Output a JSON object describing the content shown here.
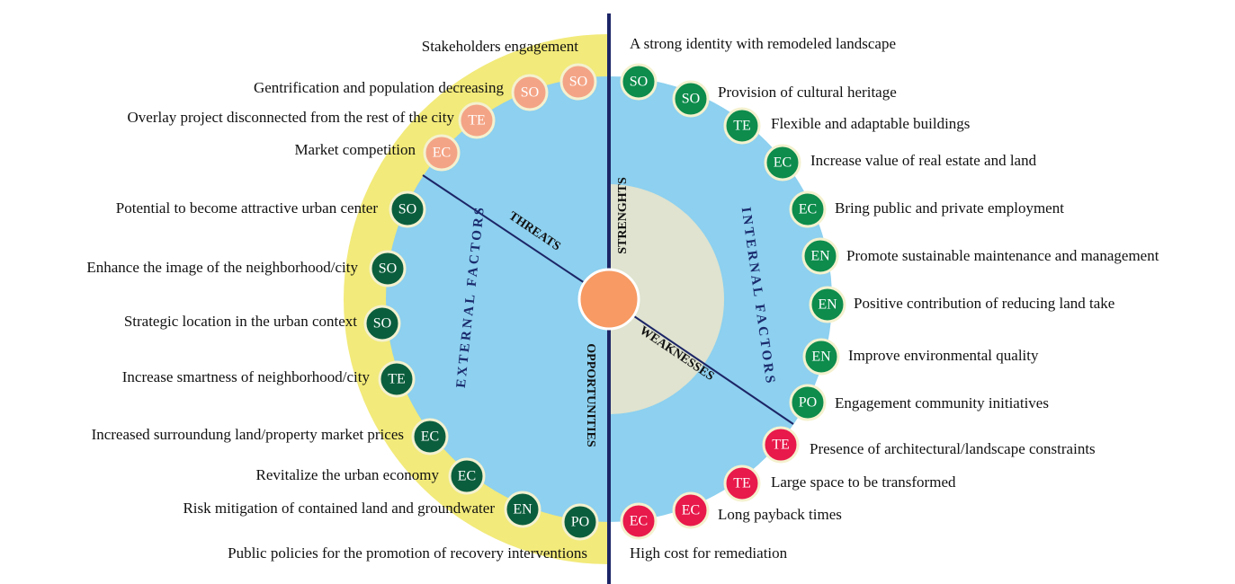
{
  "labels": {
    "external": "EXTERNAL FACTORS",
    "internal": "INTERNAL FACTORS",
    "threats": "THREATS",
    "weaknesses": "WEAKNESSES",
    "strengths": "STRENGHTS",
    "opportunities": "OPPORTUNITIES"
  },
  "external": [
    {
      "code": "SO",
      "label": "Stakeholders engagement",
      "color": "#f4a486"
    },
    {
      "code": "SO",
      "label": "Gentrification and population decreasing",
      "color": "#f4a486"
    },
    {
      "code": "TE",
      "label": "Overlay project disconnected from the rest of the city",
      "color": "#f4a486"
    },
    {
      "code": "EC",
      "label": "Market competition",
      "color": "#f4a486"
    },
    {
      "code": "SO",
      "label": "Potential to become attractive urban center",
      "color": "#0b5e3d"
    },
    {
      "code": "SO",
      "label": "Enhance the image of the neighborhood/city",
      "color": "#0b5e3d"
    },
    {
      "code": "SO",
      "label": "Strategic location in the urban context",
      "color": "#0b5e3d"
    },
    {
      "code": "TE",
      "label": "Increase smartness of neighborhood/city",
      "color": "#0b5e3d"
    },
    {
      "code": "EC",
      "label": "Increased surroundung land/property market prices",
      "color": "#0b5e3d"
    },
    {
      "code": "EC",
      "label": "Revitalize the urban economy",
      "color": "#0b5e3d"
    },
    {
      "code": "EN",
      "label": "Risk mitigation of contained land and groundwater",
      "color": "#0b5e3d"
    },
    {
      "code": "PO",
      "label": "Public policies for the promotion of recovery interventions",
      "color": "#0b5e3d"
    }
  ],
  "internal": [
    {
      "code": "SO",
      "label": "A strong identity with remodeled landscape",
      "color": "#0d8c4c"
    },
    {
      "code": "SO",
      "label": "Provision of cultural heritage",
      "color": "#0d8c4c"
    },
    {
      "code": "TE",
      "label": "Flexible and adaptable buildings",
      "color": "#0d8c4c"
    },
    {
      "code": "EC",
      "label": "Increase value of real estate and land",
      "color": "#0d8c4c"
    },
    {
      "code": "EC",
      "label": "Bring public and private employment",
      "color": "#0d8c4c"
    },
    {
      "code": "EN",
      "label": "Promote sustainable maintenance and management",
      "color": "#0d8c4c"
    },
    {
      "code": "EN",
      "label": "Positive contribution of reducing land take",
      "color": "#0d8c4c"
    },
    {
      "code": "EN",
      "label": "Improve environmental quality",
      "color": "#0d8c4c"
    },
    {
      "code": "PO",
      "label": "Engagement community initiatives",
      "color": "#0d8c4c"
    },
    {
      "code": "TE",
      "label": "Presence of architectural/landscape constraints",
      "color": "#e8194b"
    },
    {
      "code": "TE",
      "label": "Large space to be transformed",
      "color": "#e8194b"
    },
    {
      "code": "EC",
      "label": "Long payback times",
      "color": "#e8194b"
    },
    {
      "code": "EC",
      "label": "High cost for remediation",
      "color": "#e8194b"
    }
  ]
}
